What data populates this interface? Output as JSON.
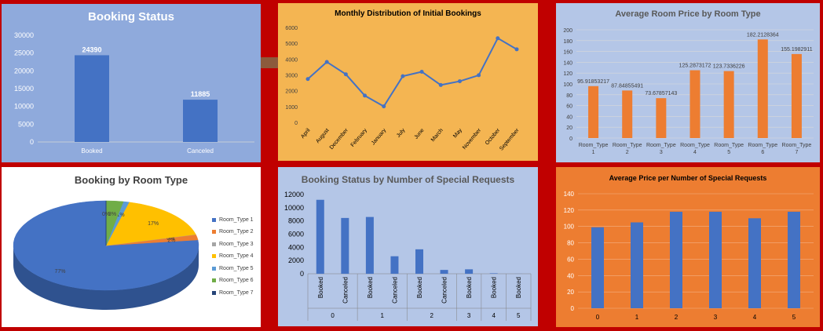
{
  "colors": {
    "background": "#c00000",
    "blue_bar": "#4472c4",
    "orange": "#ed7d31",
    "gray": "#a5a5a5",
    "yellow": "#ffc000",
    "lightblue": "#5b9bd5",
    "green": "#70ad47",
    "navy": "#264478"
  },
  "chart_data": [
    {
      "id": "booking-status",
      "type": "bar",
      "title": "Booking Status",
      "categories": [
        "Booked",
        "Canceled"
      ],
      "values": [
        24390,
        11885
      ],
      "value_labels": [
        "24390",
        "11885"
      ],
      "ylim": [
        0,
        30000
      ],
      "yticks": [
        "0",
        "5000",
        "10000",
        "15000",
        "20000",
        "25000",
        "30000"
      ],
      "background": "#8faadc",
      "grid": false
    },
    {
      "id": "monthly-distribution",
      "type": "line",
      "title": "Monthly Distribution of Initial Bookings",
      "categories": [
        "April",
        "August",
        "December",
        "February",
        "January",
        "July",
        "June",
        "March",
        "May",
        "November",
        "October",
        "September"
      ],
      "values": [
        2740,
        3820,
        3040,
        1690,
        1010,
        2920,
        3200,
        2360,
        2600,
        2980,
        5320,
        4620
      ],
      "ylim": [
        0,
        6000
      ],
      "yticks": [
        "0",
        "1000",
        "2000",
        "3000",
        "4000",
        "5000",
        "6000"
      ],
      "background": "#f4b552",
      "grid": false
    },
    {
      "id": "avg-room-price",
      "type": "bar",
      "title": "Average Room Price by Room Type",
      "categories": [
        "Room_Type 1",
        "Room_Type 2",
        "Room_Type 3",
        "Room_Type 4",
        "Room_Type 5",
        "Room_Type 6",
        "Room_Type 7"
      ],
      "category_lines": [
        [
          "Room_Type",
          "1"
        ],
        [
          "Room_Type",
          "2"
        ],
        [
          "Room_Type",
          "3"
        ],
        [
          "Room_Type",
          "4"
        ],
        [
          "Room_Type",
          "5"
        ],
        [
          "Room_Type",
          "6"
        ],
        [
          "Room_Type",
          "7"
        ]
      ],
      "values": [
        95.91853217,
        87.84855491,
        73.67857143,
        125.2873172,
        123.7336226,
        182.2128364,
        155.1982911
      ],
      "value_labels": [
        "95.91853217",
        "87.84855491",
        "73.67857143",
        "125.2873172",
        "123.7336226",
        "182.2128364",
        "155.1982911"
      ],
      "ylim": [
        0,
        200
      ],
      "yticks": [
        "0",
        "20",
        "40",
        "60",
        "80",
        "100",
        "120",
        "140",
        "160",
        "180",
        "200"
      ],
      "background": "#b4c6e7",
      "grid": true
    },
    {
      "id": "booking-by-room-type",
      "type": "pie",
      "title": "Booking by Room Type",
      "labels": [
        "Room_Type 1",
        "Room_Type 2",
        "Room_Type 3",
        "Room_Type 4",
        "Room_Type 5",
        "Room_Type 6",
        "Room_Type 7"
      ],
      "legend_labels": [
        "Room_Type 1",
        "Room_Type 2",
        "Room_Type 3",
        "Room_Type 4",
        "Room_Type 5",
        "Room_Type 6",
        "Room_Type 7"
      ],
      "values": [
        77,
        2,
        0,
        17,
        1,
        3,
        0
      ],
      "slice_labels": [
        "77%",
        "2%",
        "0%",
        "17%",
        "1%",
        "3%",
        "0%"
      ],
      "legend_position": "right",
      "background": "#ffffff"
    },
    {
      "id": "status-by-special-requests",
      "type": "bar",
      "title": "Booking Status by Number of Special Requests",
      "groups": [
        "0",
        "1",
        "2",
        "3",
        "4",
        "5"
      ],
      "bars": [
        {
          "group": "0",
          "label": "Booked",
          "value": 11200
        },
        {
          "group": "0",
          "label": "Canceled",
          "value": 8450
        },
        {
          "group": "1",
          "label": "Booked",
          "value": 8600
        },
        {
          "group": "1",
          "label": "Canceled",
          "value": 2650
        },
        {
          "group": "2",
          "label": "Booked",
          "value": 3700
        },
        {
          "group": "2",
          "label": "Canceled",
          "value": 580
        },
        {
          "group": "3",
          "label": "Booked",
          "value": 670
        },
        {
          "group": "4",
          "label": "Booked",
          "value": 70
        },
        {
          "group": "5",
          "label": "Booked",
          "value": 10
        }
      ],
      "ylim": [
        0,
        12000
      ],
      "yticks": [
        "0",
        "2000",
        "4000",
        "6000",
        "8000",
        "10000",
        "12000"
      ],
      "background": "#b4c6e7",
      "grid": false
    },
    {
      "id": "avg-price-by-special-requests",
      "type": "bar",
      "title": "Average Price per Number of Special Requests",
      "categories": [
        "0",
        "1",
        "2",
        "3",
        "4",
        "5"
      ],
      "values": [
        99,
        105,
        118,
        118,
        110,
        118
      ],
      "ylim": [
        0,
        140
      ],
      "yticks": [
        "0",
        "20",
        "40",
        "60",
        "80",
        "100",
        "120",
        "140"
      ],
      "background": "#ed7d31",
      "grid": true
    }
  ]
}
